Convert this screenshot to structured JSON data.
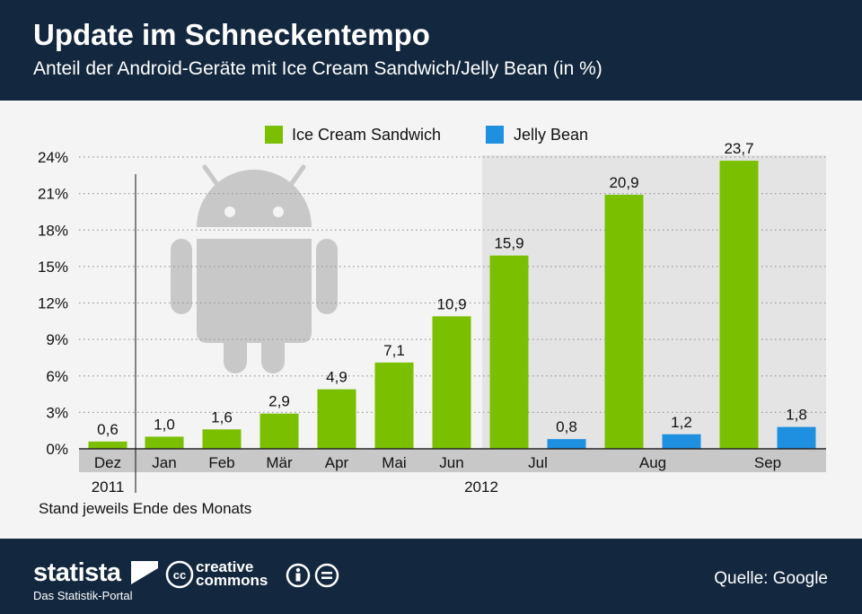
{
  "header": {
    "title": "Update im Schneckentempo",
    "subtitle": "Anteil der Android-Geräte mit Ice Cream Sandwich/Jelly Bean (in %)"
  },
  "note": "Stand jeweils Ende des Monats",
  "footer": {
    "brand": "statista",
    "brand_tagline": "Das Statistik-Portal",
    "cc_line1": "creative",
    "cc_line2": "commons",
    "source": "Quelle: Google"
  },
  "colors": {
    "ice_cream_sandwich": "#7ac000",
    "jelly_bean": "#1f8fe0",
    "header_bg": "#13283f"
  },
  "chart_data": {
    "type": "bar",
    "categories": [
      "Dez",
      "Jan",
      "Feb",
      "Mär",
      "Apr",
      "Mai",
      "Jun",
      "Jul",
      "Aug",
      "Sep"
    ],
    "year_groups": [
      {
        "label": "2011",
        "categories": [
          "Dez"
        ]
      },
      {
        "label": "2012",
        "categories": [
          "Jan",
          "Feb",
          "Mär",
          "Apr",
          "Mai",
          "Jun",
          "Jul",
          "Aug",
          "Sep"
        ]
      }
    ],
    "series": [
      {
        "name": "Ice Cream Sandwich",
        "values": [
          0.6,
          1.0,
          1.6,
          2.9,
          4.9,
          7.1,
          10.9,
          15.9,
          20.9,
          23.7
        ],
        "labels": [
          "0,6",
          "1,0",
          "1,6",
          "2,9",
          "4,9",
          "7,1",
          "10,9",
          "15,9",
          "20,9",
          "23,7"
        ]
      },
      {
        "name": "Jelly Bean",
        "values": [
          null,
          null,
          null,
          null,
          null,
          null,
          null,
          0.8,
          1.2,
          1.8
        ],
        "labels": [
          null,
          null,
          null,
          null,
          null,
          null,
          null,
          "0,8",
          "1,2",
          "1,8"
        ]
      }
    ],
    "yticks": [
      "0%",
      "3%",
      "6%",
      "9%",
      "12%",
      "15%",
      "18%",
      "21%",
      "24%"
    ],
    "ylim": [
      0,
      24
    ],
    "grid": true,
    "legend_position": "top"
  }
}
